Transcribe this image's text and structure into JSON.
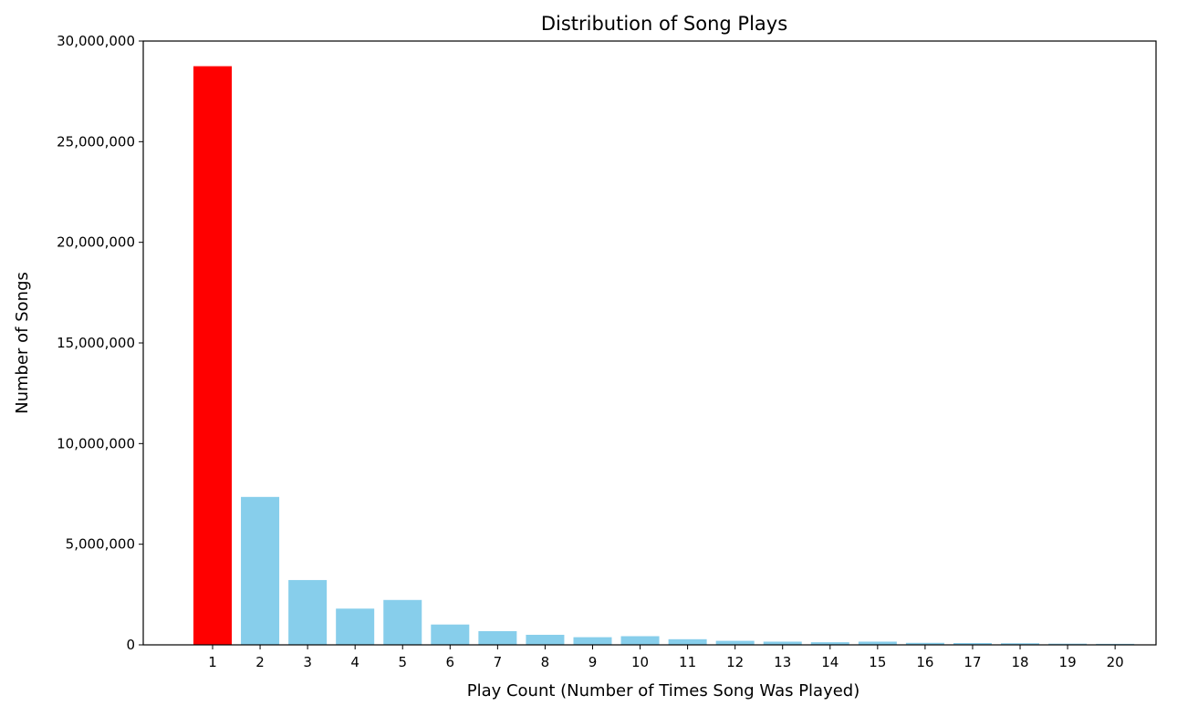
{
  "chart_data": {
    "type": "bar",
    "title": "Distribution of Song Plays",
    "xlabel": "Play Count (Number of Times Song Was Played)",
    "ylabel": "Number of Songs",
    "categories": [
      "1",
      "2",
      "3",
      "4",
      "5",
      "6",
      "7",
      "8",
      "9",
      "10",
      "11",
      "12",
      "13",
      "14",
      "15",
      "16",
      "17",
      "18",
      "19",
      "20"
    ],
    "values": [
      28750000,
      7350000,
      3220000,
      1800000,
      2230000,
      1010000,
      680000,
      500000,
      380000,
      430000,
      280000,
      200000,
      160000,
      130000,
      160000,
      100000,
      90000,
      80000,
      60000,
      50000
    ],
    "highlight_index": 0,
    "ylim": [
      0,
      30000000
    ],
    "yticks": [
      0,
      5000000,
      10000000,
      15000000,
      20000000,
      25000000,
      30000000
    ],
    "ytick_labels": [
      "0",
      "5,000,000",
      "10,000,000",
      "15,000,000",
      "20,000,000",
      "25,000,000",
      "30,000,000"
    ],
    "grid": false,
    "legend": "none",
    "colors": {
      "highlight": "#ff0000",
      "bar": "#87ceeb",
      "axis": "#000000"
    }
  }
}
